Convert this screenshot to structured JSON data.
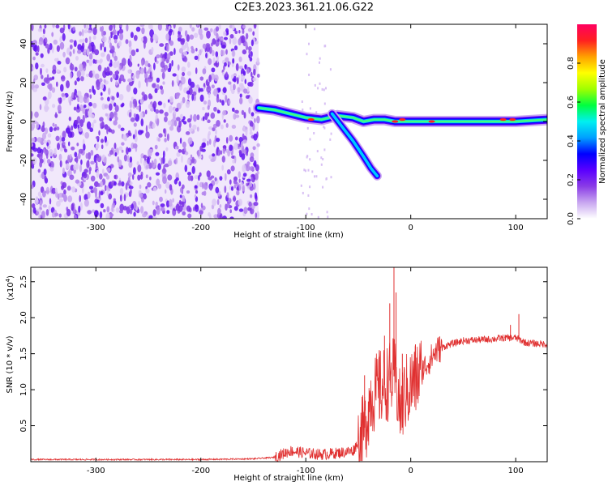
{
  "title": "C2E3.2023.361.21.06.G22",
  "chart_data": [
    {
      "type": "heatmap",
      "xlabel": "Height of straight line (km)",
      "ylabel": "Frequency (Hz)",
      "xlim": [
        -362,
        130
      ],
      "ylim": [
        -50,
        50
      ],
      "xticks": [
        -300,
        -200,
        -100,
        0,
        100
      ],
      "yticks": [
        -40,
        -20,
        0,
        20,
        40
      ],
      "colorbar": {
        "label": "Normalized spectral amplitude",
        "range": [
          0,
          1
        ],
        "ticks": [
          0.0,
          0.2,
          0.4,
          0.6,
          0.8
        ],
        "colors": [
          "#ffffff",
          "#c8a6f0",
          "#8a3ce6",
          "#5a00ff",
          "#0000ff",
          "#00a0ff",
          "#00f0f0",
          "#00ff40",
          "#a0ff00",
          "#ffff00",
          "#ffa000",
          "#ff2020",
          "#ff0060"
        ]
      },
      "noise_region": {
        "x_range": [
          -362,
          -145
        ],
        "y_range": [
          -50,
          50
        ]
      },
      "main_trace": [
        [
          -145,
          7
        ],
        [
          -130,
          6
        ],
        [
          -115,
          4
        ],
        [
          -100,
          2
        ],
        [
          -85,
          1
        ],
        [
          -70,
          3
        ],
        [
          -55,
          2
        ],
        [
          -45,
          0
        ],
        [
          -35,
          1
        ],
        [
          -25,
          1
        ],
        [
          -15,
          0
        ],
        [
          0,
          0
        ],
        [
          25,
          0
        ],
        [
          50,
          0
        ],
        [
          75,
          0
        ],
        [
          100,
          0
        ],
        [
          130,
          1
        ]
      ],
      "secondary_trace": [
        [
          -75,
          4
        ],
        [
          -65,
          -3
        ],
        [
          -55,
          -10
        ],
        [
          -45,
          -18
        ],
        [
          -38,
          -24
        ],
        [
          -32,
          -28
        ]
      ]
    },
    {
      "type": "line",
      "xlabel": "Height of straight line (km)",
      "ylabel": "SNR (10 * v/v)",
      "y_multiplier": "(x10^4)",
      "y_multiplier_base": "(x10",
      "y_multiplier_exp": "4",
      "y_multiplier_close": ")",
      "xlim": [
        -362,
        130
      ],
      "ylim": [
        0,
        2.7
      ],
      "xticks": [
        -300,
        -200,
        -100,
        0,
        100
      ],
      "yticks": [
        0.5,
        1.0,
        1.5,
        2.0,
        2.5
      ],
      "series": [
        {
          "color": "#e03030",
          "values": [
            [
              -362,
              0.03
            ],
            [
              -300,
              0.03
            ],
            [
              -200,
              0.03
            ],
            [
              -150,
              0.04
            ],
            [
              -130,
              0.06
            ],
            [
              -115,
              0.15
            ],
            [
              -100,
              0.12
            ],
            [
              -85,
              0.1
            ],
            [
              -70,
              0.12
            ],
            [
              -55,
              0.15
            ],
            [
              -45,
              0.4
            ],
            [
              -38,
              0.9
            ],
            [
              -30,
              1.0
            ],
            [
              -22,
              1.1
            ],
            [
              -15,
              1.2
            ],
            [
              -10,
              0.7
            ],
            [
              -5,
              0.95
            ],
            [
              0,
              1.05
            ],
            [
              5,
              1.15
            ],
            [
              15,
              1.35
            ],
            [
              25,
              1.55
            ],
            [
              35,
              1.62
            ],
            [
              50,
              1.68
            ],
            [
              75,
              1.7
            ],
            [
              90,
              1.72
            ],
            [
              100,
              1.72
            ],
            [
              110,
              1.65
            ],
            [
              120,
              1.64
            ],
            [
              130,
              1.63
            ]
          ],
          "spikes": [
            [
              -44,
              1.2
            ],
            [
              -30,
              1.55
            ],
            [
              -25,
              1.75
            ],
            [
              -20,
              2.2
            ],
            [
              -16,
              2.72
            ],
            [
              -14,
              2.35
            ],
            [
              -8,
              1.5
            ],
            [
              12,
              1.4
            ],
            [
              95,
              1.9
            ],
            [
              103,
              2.05
            ]
          ]
        }
      ]
    }
  ]
}
